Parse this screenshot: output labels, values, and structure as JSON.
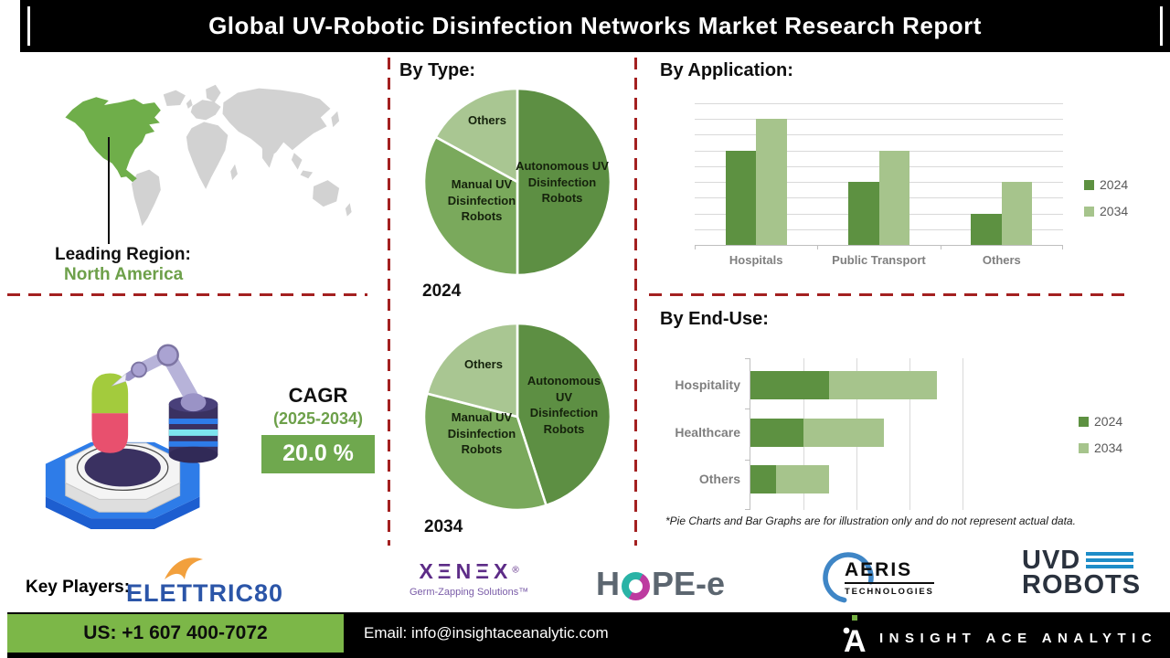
{
  "title": "Global UV-Robotic Disinfection Networks Market Research Report",
  "map": {
    "leading_region_label": "Leading Region:",
    "leading_region_value": "North America"
  },
  "cagr": {
    "label": "CAGR",
    "period": "(2025-2034)",
    "value": "20.0 %"
  },
  "sections": {
    "by_type": "By Type:"
  },
  "disclaimer": "*Pie Charts and Bar Graphs are for illustration only and do not represent actual data.",
  "key_players": {
    "label": "Key Players:",
    "elettric80": {
      "name": "ELETTRIC80"
    },
    "xenex": {
      "name": "XΞNΞX",
      "reg": "®",
      "tagline": "Germ-Zapping Solutions™"
    },
    "hope_e": {
      "prefix": "H",
      "suffix": "PE-e"
    },
    "aeris": {
      "name": "AERIS",
      "sub": "TECHNOLOGIES"
    },
    "uvd_robots": {
      "line1": "UVD",
      "line2": "ROBOTS"
    }
  },
  "footer": {
    "phone": "US: +1 607 400-7072",
    "email": "Email: info@insightaceanalytic.com",
    "brand": "INSIGHT ACE ANALYTIC"
  },
  "colors": {
    "pie_dark_green": "#5d8f43",
    "pie_mid_green": "#7aa95c",
    "pie_light_green": "#a9c692",
    "bar_2024": "#5d9141",
    "bar_2034": "#a6c48c",
    "cagr_box_green": "#6fa84e",
    "footer_green": "#7cb748",
    "dashed_red": "#a32020",
    "map_highlight_green": "#6fae4a",
    "map_land_gray": "#d2d2d2"
  },
  "chart_data": [
    {
      "type": "pie",
      "group": "By Type:",
      "year": "2024",
      "labels": [
        "Autonomous UV Disinfection Robots",
        "Manual UV Disinfection Robots",
        "Others"
      ],
      "values": [
        50,
        33,
        17
      ],
      "colors": [
        "#5d8f43",
        "#7aa95c",
        "#a9c692"
      ],
      "note": "illustrative only"
    },
    {
      "type": "pie",
      "group": "By Type:",
      "year": "2034",
      "labels": [
        "Autonomous UV Disinfection Robots",
        "Manual UV Disinfection Robots",
        "Others"
      ],
      "values": [
        45,
        34,
        21
      ],
      "colors": [
        "#5d8f43",
        "#7aa95c",
        "#a9c692"
      ],
      "note": "illustrative only"
    },
    {
      "type": "bar",
      "title": "By Application:",
      "categories": [
        "Hospitals",
        "Public Transport",
        "Others"
      ],
      "series": [
        {
          "name": "2024",
          "color": "#5d9141",
          "values": [
            60,
            40,
            20
          ]
        },
        {
          "name": "2034",
          "color": "#a6c48c",
          "values": [
            80,
            60,
            40
          ]
        }
      ],
      "ylim": [
        0,
        90
      ],
      "grid_step": 10,
      "grid": true,
      "legend_position": "right",
      "note": "illustrative only"
    },
    {
      "type": "bar",
      "orientation": "horizontal",
      "stacked": true,
      "title": "By End-Use:",
      "categories": [
        "Hospitality",
        "Healthcare",
        "Others"
      ],
      "series": [
        {
          "name": "2024",
          "color": "#5d9141",
          "values": [
            37,
            25,
            12
          ]
        },
        {
          "name": "2034",
          "color": "#a6c48c",
          "values": [
            51,
            38,
            25
          ]
        }
      ],
      "xlim": [
        0,
        100
      ],
      "grid_step": 25,
      "grid": true,
      "legend_position": "right",
      "note": "illustrative only"
    }
  ]
}
